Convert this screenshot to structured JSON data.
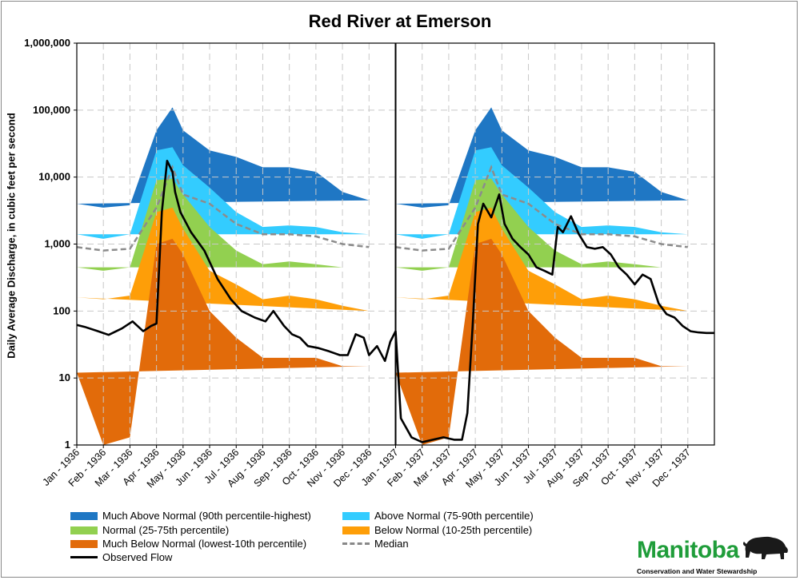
{
  "chart_data": {
    "type": "area",
    "title": "Red River at Emerson",
    "ylabel": "Daily Average Discharge, in cubic feet per second",
    "xlabel": "",
    "yscale": "log",
    "ylim": [
      1,
      1000000
    ],
    "y_ticks": [
      "1",
      "10",
      "100",
      "1,000",
      "10,000",
      "100,000",
      "1,000,000"
    ],
    "grid": true,
    "x_ticks": [
      "Jan - 1936",
      "Feb - 1936",
      "Mar - 1936",
      "Apr - 1936",
      "May - 1936",
      "Jun - 1936",
      "Jul - 1936",
      "Aug - 1936",
      "Sep - 1936",
      "Oct - 1936",
      "Nov - 1936",
      "Dec - 1936",
      "Jan - 1937",
      "Feb - 1937",
      "Mar - 1937",
      "Apr - 1937",
      "May - 1937",
      "Jun - 1937",
      "Jul - 1937",
      "Aug - 1937",
      "Sep - 1937",
      "Oct - 1937",
      "Nov - 1937",
      "Dec - 1937"
    ],
    "month_positions": [
      0,
      1,
      2,
      3,
      3.6,
      4,
      5,
      6,
      7,
      8,
      9,
      10,
      11,
      12
    ],
    "bands": [
      {
        "name": "Much Below Normal (lowest-10th percentile)",
        "color": "#e26b0a",
        "values": [
          12,
          1,
          1.3,
          1000,
          1200,
          700,
          100,
          40,
          20,
          20,
          20,
          15,
          15
        ]
      },
      {
        "name": "Below Normal (10-25th percentile)",
        "color": "#fe9e08",
        "values": [
          160,
          150,
          170,
          3000,
          3500,
          1700,
          400,
          250,
          150,
          170,
          150,
          120,
          100
        ]
      },
      {
        "name": "Normal (25-75th percentile)",
        "color": "#92d050",
        "values": [
          450,
          400,
          450,
          9000,
          9500,
          5500,
          1800,
          800,
          500,
          550,
          500,
          450,
          450
        ]
      },
      {
        "name": "Above Normal (75-90th percentile)",
        "color": "#33ccff",
        "values": [
          1400,
          1200,
          1400,
          25000,
          28000,
          15000,
          7000,
          3000,
          1800,
          1900,
          1800,
          1500,
          1400
        ]
      },
      {
        "name": "Much Above Normal (90th percentile-highest)",
        "color": "#1f77c4",
        "values": [
          4000,
          3500,
          3800,
          50000,
          110000,
          50000,
          25000,
          20000,
          14000,
          14000,
          12000,
          6000,
          4500
        ]
      }
    ],
    "median": {
      "name": "Median",
      "values": [
        900,
        800,
        850,
        3500,
        14000,
        5500,
        4000,
        2000,
        1400,
        1400,
        1300,
        1000,
        900
      ]
    },
    "observed": {
      "name": "Observed Flow",
      "x": [
        0,
        0.3,
        0.8,
        1.2,
        1.7,
        2.1,
        2.5,
        2.8,
        3.0,
        3.2,
        3.4,
        3.6,
        3.7,
        3.9,
        4.3,
        4.8,
        5.3,
        5.8,
        6.2,
        6.7,
        7.1,
        7.4,
        7.8,
        8.1,
        8.4,
        8.7,
        9.1,
        9.5,
        9.9,
        10.2,
        10.5,
        10.8,
        11.0,
        11.3,
        11.6,
        11.8,
        12.0,
        12.2,
        12.6,
        13.0,
        13.4,
        13.8,
        14.2,
        14.5,
        14.7,
        14.9,
        15.1,
        15.3,
        15.6,
        15.9,
        16.1,
        16.4,
        16.7,
        17.0,
        17.3,
        17.6,
        17.9,
        18.1,
        18.3,
        18.6,
        18.9,
        19.2,
        19.5,
        19.8,
        20.1,
        20.4,
        20.7,
        21.0,
        21.3,
        21.6,
        21.9,
        22.2,
        22.5,
        22.8,
        23.1,
        23.4,
        23.7,
        24.0
      ],
      "values": [
        62,
        58,
        50,
        44,
        55,
        70,
        50,
        60,
        65,
        3000,
        17500,
        12000,
        6000,
        3000,
        1500,
        800,
        300,
        150,
        100,
        80,
        70,
        100,
        60,
        45,
        40,
        30,
        28,
        25,
        22,
        22,
        45,
        40,
        22,
        30,
        18,
        35,
        50,
        2.5,
        1.3,
        1.1,
        1.2,
        1.3,
        1.2,
        1.2,
        3,
        60,
        2000,
        4000,
        2500,
        5500,
        2000,
        1200,
        900,
        700,
        450,
        400,
        350,
        1800,
        1500,
        2600,
        1400,
        900,
        850,
        900,
        700,
        450,
        350,
        250,
        350,
        300,
        130,
        90,
        80,
        60,
        50,
        48,
        47,
        47
      ]
    },
    "legend": [
      {
        "label": "Much Above Normal (90th percentile-highest)",
        "kind": "band",
        "color": "#1f77c4"
      },
      {
        "label": "Above Normal (75-90th percentile)",
        "kind": "band",
        "color": "#33ccff"
      },
      {
        "label": "Normal (25-75th percentile)",
        "kind": "band",
        "color": "#92d050"
      },
      {
        "label": "Below Normal (10-25th percentile)",
        "kind": "band",
        "color": "#fe9e08"
      },
      {
        "label": "Much Below Normal (lowest-10th percentile)",
        "kind": "band",
        "color": "#e26b0a"
      },
      {
        "label": "Median",
        "kind": "dashed",
        "color": "#888888"
      },
      {
        "label": "Observed Flow",
        "kind": "line",
        "color": "#000000"
      }
    ]
  },
  "logo": {
    "name": "Manitoba",
    "subtitle": "Conservation and Water Stewardship",
    "icon": "bison-icon"
  }
}
